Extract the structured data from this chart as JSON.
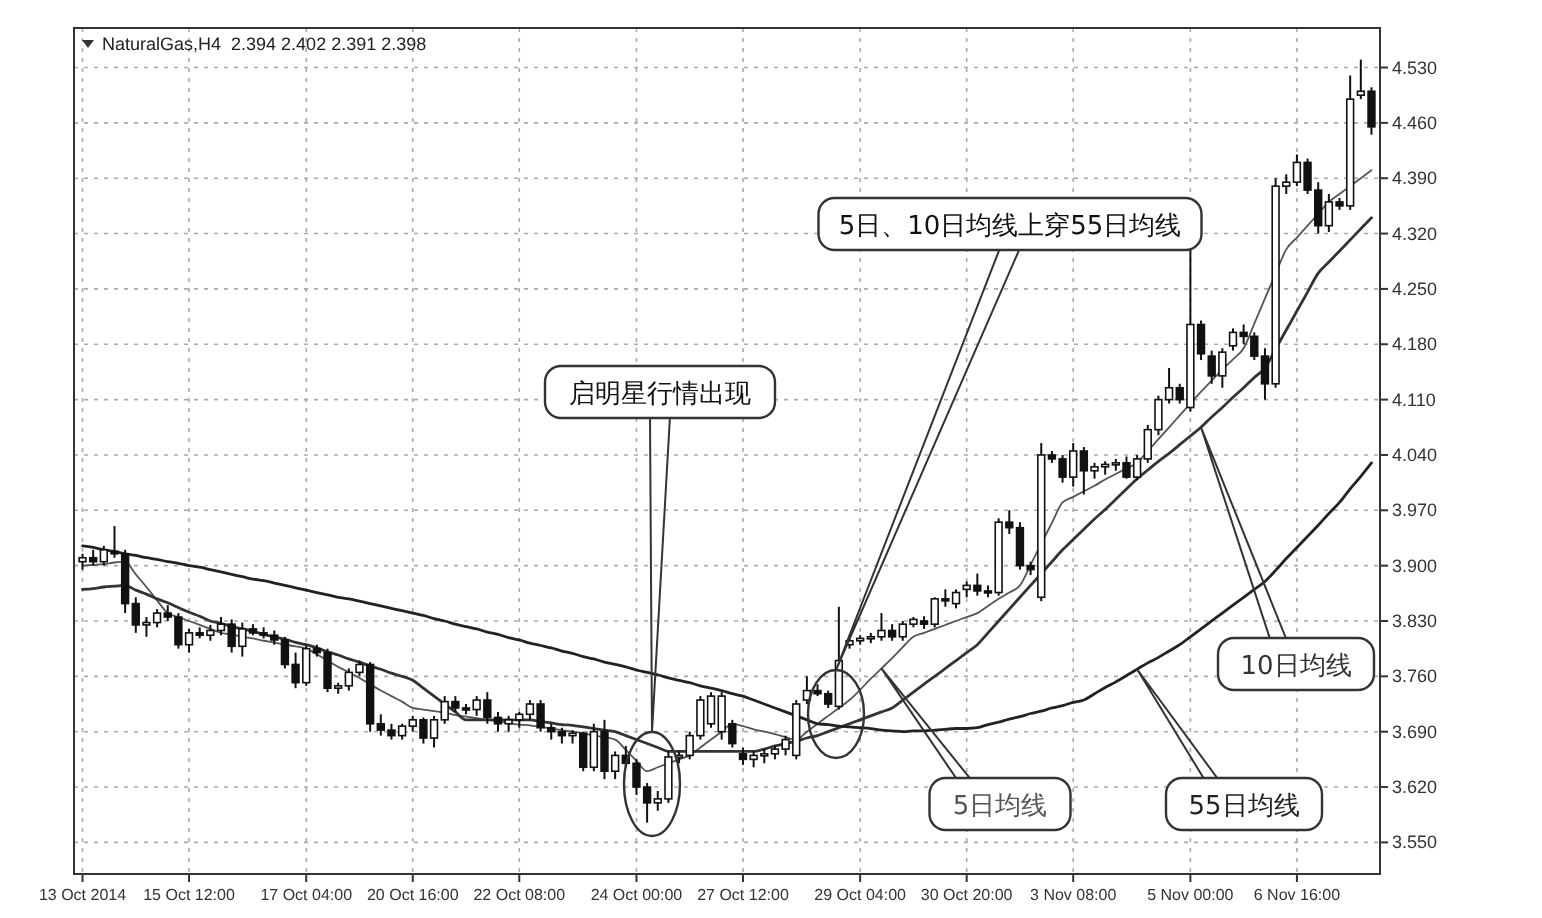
{
  "chart_data": {
    "type": "candlestick",
    "title": "NaturalGas,H4  2.394 2.402 2.391 2.398",
    "color": "#111111",
    "categories": [
      "13 Oct 2014",
      null,
      null,
      null,
      null,
      null,
      null,
      null,
      null,
      null,
      "15 Oct 12:00",
      null,
      null,
      null,
      null,
      null,
      null,
      null,
      null,
      null,
      null,
      "17 Oct 04:00",
      null,
      null,
      null,
      null,
      null,
      null,
      null,
      null,
      null,
      "20 Oct 16:00",
      null,
      null,
      null,
      null,
      null,
      null,
      null,
      null,
      null,
      "22 Oct 08:00",
      null,
      null,
      null,
      null,
      null,
      null,
      null,
      null,
      null,
      null,
      "24 Oct 00:00",
      null,
      null,
      null,
      null,
      null,
      null,
      null,
      null,
      null,
      "27 Oct 12:00",
      null,
      null,
      null,
      null,
      null,
      null,
      null,
      null,
      null,
      null,
      "29 Oct 04:00",
      null,
      null,
      null,
      null,
      null,
      null,
      null,
      null,
      null,
      "30 Oct 20:00",
      null,
      null,
      null,
      null,
      null,
      null,
      null,
      null,
      null,
      "3 Nov 08:00",
      null,
      null,
      null,
      null,
      null,
      null,
      null,
      null,
      null,
      null,
      "5 Nov 00:00",
      null,
      null,
      null,
      null,
      null,
      null,
      null,
      null,
      null,
      "6 Nov 16:00",
      null,
      null,
      null,
      null,
      null,
      null,
      null
    ],
    "ohlc": [
      [
        3.905,
        3.915,
        3.895,
        3.91
      ],
      [
        3.91,
        3.92,
        3.9,
        3.905
      ],
      [
        3.905,
        3.925,
        3.9,
        3.92
      ],
      [
        3.918,
        3.95,
        3.91,
        3.915
      ],
      [
        3.915,
        3.92,
        3.84,
        3.852
      ],
      [
        3.852,
        3.86,
        3.815,
        3.825
      ],
      [
        3.825,
        3.835,
        3.81,
        3.828
      ],
      [
        3.828,
        3.845,
        3.822,
        3.84
      ],
      [
        3.84,
        3.85,
        3.83,
        3.835
      ],
      [
        3.835,
        3.84,
        3.795,
        3.8
      ],
      [
        3.8,
        3.82,
        3.79,
        3.815
      ],
      [
        3.815,
        3.822,
        3.808,
        3.812
      ],
      [
        3.812,
        3.825,
        3.805,
        3.818
      ],
      [
        3.818,
        3.835,
        3.812,
        3.826
      ],
      [
        3.826,
        3.832,
        3.79,
        3.798
      ],
      [
        3.798,
        3.828,
        3.785,
        3.82
      ],
      [
        3.82,
        3.826,
        3.812,
        3.815
      ],
      [
        3.815,
        3.822,
        3.808,
        3.812
      ],
      [
        3.812,
        3.818,
        3.8,
        3.806
      ],
      [
        3.806,
        3.81,
        3.77,
        3.775
      ],
      [
        3.775,
        3.79,
        3.745,
        3.752
      ],
      [
        3.752,
        3.8,
        3.748,
        3.795
      ],
      [
        3.795,
        3.8,
        3.785,
        3.79
      ],
      [
        3.79,
        3.795,
        3.74,
        3.745
      ],
      [
        3.745,
        3.752,
        3.738,
        3.748
      ],
      [
        3.748,
        3.77,
        3.742,
        3.765
      ],
      [
        3.765,
        3.78,
        3.76,
        3.775
      ],
      [
        3.775,
        3.778,
        3.69,
        3.7
      ],
      [
        3.7,
        3.712,
        3.685,
        3.692
      ],
      [
        3.692,
        3.7,
        3.68,
        3.685
      ],
      [
        3.685,
        3.7,
        3.68,
        3.697
      ],
      [
        3.697,
        3.71,
        3.69,
        3.705
      ],
      [
        3.705,
        3.708,
        3.675,
        3.682
      ],
      [
        3.682,
        3.71,
        3.67,
        3.705
      ],
      [
        3.705,
        3.735,
        3.7,
        3.728
      ],
      [
        3.728,
        3.735,
        3.715,
        3.72
      ],
      [
        3.72,
        3.725,
        3.712,
        3.718
      ],
      [
        3.718,
        3.735,
        3.71,
        3.73
      ],
      [
        3.73,
        3.74,
        3.7,
        3.708
      ],
      [
        3.708,
        3.715,
        3.69,
        3.7
      ],
      [
        3.7,
        3.71,
        3.69,
        3.705
      ],
      [
        3.705,
        3.715,
        3.695,
        3.712
      ],
      [
        3.712,
        3.73,
        3.705,
        3.725
      ],
      [
        3.725,
        3.73,
        3.69,
        3.695
      ],
      [
        3.695,
        3.7,
        3.68,
        3.69
      ],
      [
        3.69,
        3.695,
        3.675,
        3.685
      ],
      [
        3.685,
        3.692,
        3.675,
        3.688
      ],
      [
        3.688,
        3.69,
        3.64,
        3.645
      ],
      [
        3.645,
        3.7,
        3.64,
        3.69
      ],
      [
        3.69,
        3.705,
        3.63,
        3.64
      ],
      [
        3.64,
        3.665,
        3.63,
        3.66
      ],
      [
        3.66,
        3.672,
        3.645,
        3.65
      ],
      [
        3.65,
        3.655,
        3.61,
        3.62
      ],
      [
        3.62,
        3.625,
        3.575,
        3.6
      ],
      [
        3.6,
        3.615,
        3.59,
        3.605
      ],
      [
        3.605,
        3.665,
        3.6,
        3.658
      ],
      [
        3.658,
        3.665,
        3.65,
        3.66
      ],
      [
        3.66,
        3.69,
        3.655,
        3.685
      ],
      [
        3.685,
        3.735,
        3.68,
        3.73
      ],
      [
        3.7,
        3.74,
        3.695,
        3.735
      ],
      [
        3.69,
        3.74,
        3.68,
        3.735
      ],
      [
        3.7,
        3.705,
        3.67,
        3.675
      ],
      [
        3.662,
        3.67,
        3.648,
        3.655
      ],
      [
        3.655,
        3.665,
        3.645,
        3.66
      ],
      [
        3.66,
        3.668,
        3.65,
        3.662
      ],
      [
        3.662,
        3.672,
        3.655,
        3.668
      ],
      [
        3.668,
        3.685,
        3.66,
        3.68
      ],
      [
        3.66,
        3.73,
        3.655,
        3.725
      ],
      [
        3.73,
        3.76,
        3.725,
        3.742
      ],
      [
        3.742,
        3.75,
        3.735,
        3.738
      ],
      [
        3.738,
        3.742,
        3.72,
        3.725
      ],
      [
        3.722,
        3.848,
        3.718,
        3.78
      ],
      [
        3.8,
        3.812,
        3.795,
        3.805
      ],
      [
        3.805,
        3.812,
        3.8,
        3.808
      ],
      [
        3.808,
        3.815,
        3.802,
        3.81
      ],
      [
        3.81,
        3.84,
        3.805,
        3.818
      ],
      [
        3.818,
        3.826,
        3.805,
        3.81
      ],
      [
        3.81,
        3.83,
        3.805,
        3.826
      ],
      [
        3.826,
        3.835,
        3.822,
        3.832
      ],
      [
        3.83,
        3.836,
        3.82,
        3.826
      ],
      [
        3.826,
        3.86,
        3.822,
        3.858
      ],
      [
        3.858,
        3.87,
        3.848,
        3.856
      ],
      [
        3.852,
        3.87,
        3.846,
        3.866
      ],
      [
        3.87,
        3.88,
        3.86,
        3.875
      ],
      [
        3.875,
        3.89,
        3.862,
        3.868
      ],
      [
        3.868,
        3.875,
        3.86,
        3.866
      ],
      [
        3.866,
        3.96,
        3.862,
        3.955
      ],
      [
        3.955,
        3.97,
        3.94,
        3.948
      ],
      [
        3.948,
        3.955,
        3.895,
        3.9
      ],
      [
        3.9,
        3.905,
        3.888,
        3.895
      ],
      [
        3.86,
        4.055,
        3.855,
        4.04
      ],
      [
        4.04,
        4.045,
        4.03,
        4.035
      ],
      [
        4.035,
        4.04,
        4.005,
        4.012
      ],
      [
        4.012,
        4.055,
        4.0,
        4.045
      ],
      [
        4.045,
        4.05,
        3.99,
        4.02
      ],
      [
        4.02,
        4.03,
        4.01,
        4.025
      ],
      [
        4.025,
        4.032,
        4.015,
        4.028
      ],
      [
        4.028,
        4.035,
        4.02,
        4.03
      ],
      [
        4.03,
        4.038,
        4.01,
        4.012
      ],
      [
        4.012,
        4.04,
        4.008,
        4.035
      ],
      [
        4.035,
        4.078,
        4.03,
        4.072
      ],
      [
        4.072,
        4.115,
        4.065,
        4.11
      ],
      [
        4.11,
        4.15,
        4.105,
        4.125
      ],
      [
        4.125,
        4.13,
        4.105,
        4.11
      ],
      [
        4.1,
        4.3,
        4.095,
        4.205
      ],
      [
        4.205,
        4.21,
        4.16,
        4.168
      ],
      [
        4.165,
        4.172,
        4.13,
        4.14
      ],
      [
        4.14,
        4.175,
        4.125,
        4.17
      ],
      [
        4.178,
        4.2,
        4.172,
        4.195
      ],
      [
        4.195,
        4.205,
        4.18,
        4.19
      ],
      [
        4.19,
        4.195,
        4.16,
        4.165
      ],
      [
        4.165,
        4.175,
        4.11,
        4.13
      ],
      [
        4.13,
        4.39,
        4.125,
        4.38
      ],
      [
        4.38,
        4.395,
        4.37,
        4.385
      ],
      [
        4.385,
        4.42,
        4.38,
        4.41
      ],
      [
        4.41,
        4.415,
        4.37,
        4.375
      ],
      [
        4.375,
        4.385,
        4.32,
        4.33
      ],
      [
        4.33,
        4.37,
        4.322,
        4.36
      ],
      [
        4.36,
        4.365,
        4.35,
        4.355
      ],
      [
        4.355,
        4.52,
        4.35,
        4.49
      ],
      [
        4.495,
        4.54,
        4.49,
        4.5
      ],
      [
        4.5,
        4.505,
        4.445,
        4.455
      ]
    ],
    "series": [
      {
        "type": "line",
        "name": "5日均线",
        "color": "#555555",
        "values": [
          3.9,
          3.901,
          3.902,
          3.904,
          3.905,
          3.889,
          3.873,
          3.856,
          3.84,
          3.835,
          3.83,
          3.825,
          3.82,
          3.815,
          3.813,
          3.81,
          3.808,
          3.805,
          3.803,
          3.8,
          3.798,
          3.795,
          3.788,
          3.78,
          3.772,
          3.765,
          3.758,
          3.75,
          3.742,
          3.735,
          3.728,
          3.72,
          3.718,
          3.716,
          3.714,
          3.711,
          3.709,
          3.707,
          3.705,
          3.703,
          3.701,
          3.699,
          3.698,
          3.696,
          3.694,
          3.692,
          3.69,
          3.688,
          3.685,
          3.683,
          3.68,
          3.667,
          3.653,
          3.64,
          3.645,
          3.65,
          3.655,
          3.66,
          3.67,
          3.68,
          3.69,
          3.7,
          3.697,
          3.693,
          3.69,
          3.687,
          3.683,
          3.68,
          3.69,
          3.7,
          3.71,
          3.72,
          3.73,
          3.743,
          3.757,
          3.77,
          3.783,
          3.797,
          3.81,
          3.815,
          3.82,
          3.825,
          3.83,
          3.835,
          3.84,
          3.849,
          3.858,
          3.866,
          3.875,
          3.901,
          3.928,
          3.954,
          3.98,
          3.987,
          3.994,
          4.001,
          4.009,
          4.016,
          4.023,
          4.03,
          4.045,
          4.06,
          4.075,
          4.09,
          4.105,
          4.12,
          4.134,
          4.148,
          4.161,
          4.175,
          4.206,
          4.238,
          4.269,
          4.3,
          4.315,
          4.33,
          4.345,
          4.36,
          4.37,
          4.38,
          4.39,
          4.4
        ]
      },
      {
        "type": "line",
        "name": "10日均线",
        "color": "#333333",
        "values": [
          3.87,
          3.871,
          3.873,
          3.874,
          3.875,
          3.869,
          3.864,
          3.858,
          3.853,
          3.847,
          3.841,
          3.836,
          3.83,
          3.827,
          3.823,
          3.82,
          3.817,
          3.813,
          3.81,
          3.807,
          3.803,
          3.8,
          3.796,
          3.791,
          3.787,
          3.782,
          3.778,
          3.773,
          3.769,
          3.764,
          3.76,
          3.755,
          3.745,
          3.735,
          3.725,
          3.715,
          3.705,
          3.705,
          3.705,
          3.705,
          3.705,
          3.705,
          3.705,
          3.703,
          3.701,
          3.699,
          3.698,
          3.696,
          3.694,
          3.692,
          3.69,
          3.685,
          3.68,
          3.675,
          3.67,
          3.665,
          3.665,
          3.665,
          3.665,
          3.665,
          3.665,
          3.665,
          3.665,
          3.665,
          3.668,
          3.672,
          3.675,
          3.678,
          3.682,
          3.685,
          3.69,
          3.695,
          3.7,
          3.705,
          3.71,
          3.715,
          3.72,
          3.73,
          3.74,
          3.75,
          3.76,
          3.77,
          3.78,
          3.79,
          3.8,
          3.815,
          3.83,
          3.845,
          3.86,
          3.875,
          3.89,
          3.905,
          3.92,
          3.933,
          3.946,
          3.959,
          3.971,
          3.984,
          3.997,
          4.01,
          4.021,
          4.032,
          4.042,
          4.053,
          4.064,
          4.075,
          4.088,
          4.1,
          4.113,
          4.125,
          4.138,
          4.15,
          4.174,
          4.198,
          4.222,
          4.246,
          4.27,
          4.284,
          4.298,
          4.312,
          4.326,
          4.34
        ]
      },
      {
        "type": "line",
        "name": "55日均线",
        "color": "#222222",
        "values": [
          3.925,
          3.923,
          3.92,
          3.918,
          3.915,
          3.913,
          3.91,
          3.908,
          3.905,
          3.903,
          3.9,
          3.898,
          3.895,
          3.892,
          3.889,
          3.886,
          3.883,
          3.881,
          3.878,
          3.875,
          3.872,
          3.869,
          3.866,
          3.863,
          3.86,
          3.858,
          3.855,
          3.852,
          3.849,
          3.846,
          3.843,
          3.84,
          3.837,
          3.833,
          3.83,
          3.826,
          3.823,
          3.82,
          3.816,
          3.813,
          3.809,
          3.806,
          3.802,
          3.799,
          3.796,
          3.792,
          3.789,
          3.785,
          3.782,
          3.778,
          3.775,
          3.772,
          3.768,
          3.765,
          3.762,
          3.758,
          3.755,
          3.752,
          3.748,
          3.745,
          3.742,
          3.738,
          3.735,
          3.73,
          3.725,
          3.72,
          3.715,
          3.71,
          3.705,
          3.7,
          3.699,
          3.697,
          3.696,
          3.695,
          3.694,
          3.692,
          3.691,
          3.69,
          3.691,
          3.691,
          3.692,
          3.693,
          3.694,
          3.694,
          3.695,
          3.699,
          3.702,
          3.706,
          3.709,
          3.713,
          3.716,
          3.72,
          3.723,
          3.727,
          3.73,
          3.738,
          3.746,
          3.753,
          3.761,
          3.769,
          3.777,
          3.784,
          3.792,
          3.8,
          3.81,
          3.82,
          3.83,
          3.84,
          3.85,
          3.86,
          3.87,
          3.88,
          3.894,
          3.909,
          3.923,
          3.937,
          3.951,
          3.966,
          3.98,
          3.997,
          4.013,
          4.03
        ]
      }
    ],
    "ylim": [
      3.51,
      4.58
    ],
    "yticks": [
      {
        "value": 3.55,
        "label": "3.550"
      },
      {
        "value": 3.62,
        "label": "3.620"
      },
      {
        "value": 3.69,
        "label": "3.690"
      },
      {
        "value": 3.76,
        "label": "3.760"
      },
      {
        "value": 3.83,
        "label": "3.830"
      },
      {
        "value": 3.9,
        "label": "3.900"
      },
      {
        "value": 3.97,
        "label": "3.970"
      },
      {
        "value": 4.04,
        "label": "4.040"
      },
      {
        "value": 4.11,
        "label": "4.110"
      },
      {
        "value": 4.18,
        "label": "4.180"
      },
      {
        "value": 4.25,
        "label": "4.250"
      },
      {
        "value": 4.32,
        "label": "4.320"
      },
      {
        "value": 4.39,
        "label": "4.390"
      },
      {
        "value": 4.46,
        "label": "4.460"
      },
      {
        "value": 4.53,
        "label": "4.530"
      }
    ],
    "grid": true,
    "annotations": [
      "启明星行情出现",
      "5日、10日均线上穿55日均线"
    ]
  }
}
